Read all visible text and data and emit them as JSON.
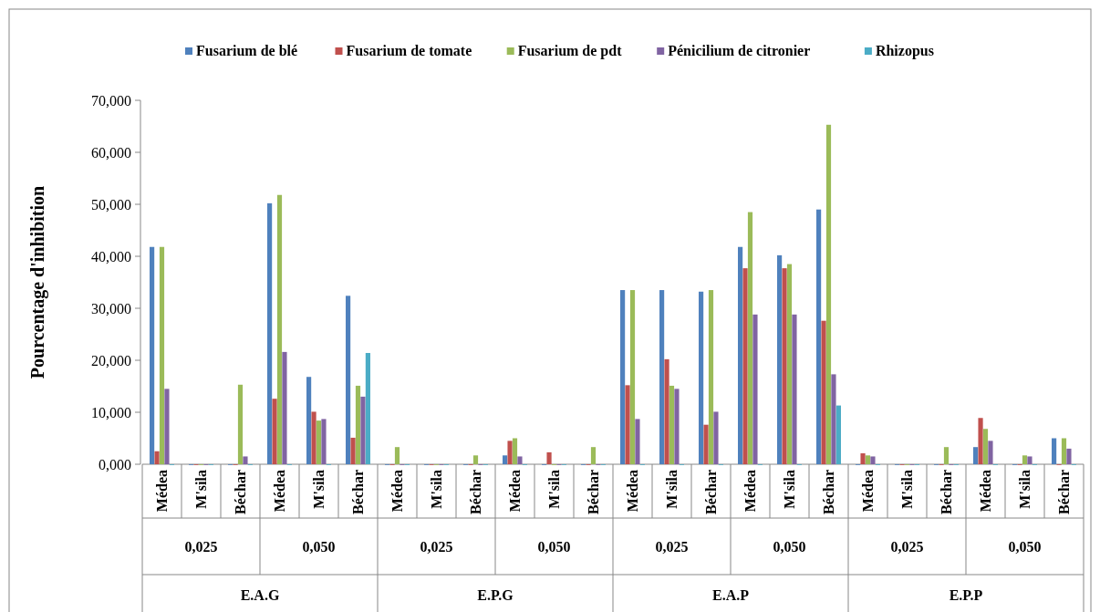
{
  "chart_data": {
    "type": "bar",
    "ylabel": "Pourcentage d'inhibition",
    "categories": [
      "Médea",
      "M'sila",
      "Béchar",
      "Médea",
      "M'sila",
      "Béchar",
      "Médea",
      "M'sila",
      "Béchar",
      "Médea",
      "M'sila",
      "Béchar",
      "Médea",
      "M'sila",
      "Béchar",
      "Médea",
      "M'sila",
      "Béchar",
      "Médea",
      "M'sila",
      "Béchar",
      "Médea",
      "M'sila",
      "Béchar"
    ],
    "series": [
      {
        "name": "Fusarium de blé",
        "color": "#4f81bd",
        "values": [
          41.8,
          0,
          0,
          50.2,
          16.8,
          32.4,
          0,
          0,
          0,
          1.7,
          0,
          0,
          33.5,
          33.5,
          33.2,
          41.8,
          40.2,
          49.0,
          0,
          0,
          0,
          3.3,
          0,
          5.0
        ]
      },
      {
        "name": "Fusarium de tomate",
        "color": "#c0504d",
        "values": [
          2.5,
          0,
          0,
          12.6,
          10.1,
          5.1,
          0,
          0,
          0,
          4.5,
          2.3,
          0,
          15.2,
          20.2,
          7.6,
          37.7,
          37.7,
          27.6,
          2.1,
          0,
          0,
          8.9,
          0,
          0
        ]
      },
      {
        "name": "Fusarium de pdt",
        "color": "#9bbb59",
        "values": [
          41.8,
          0,
          15.3,
          51.8,
          8.4,
          15.1,
          3.3,
          0,
          1.7,
          5.0,
          0,
          3.3,
          33.5,
          15.1,
          33.5,
          48.5,
          38.5,
          65.3,
          1.7,
          0,
          3.3,
          6.8,
          1.7,
          5.0
        ]
      },
      {
        "name": "Pénicilium de citronier",
        "color": "#8064a2",
        "values": [
          14.5,
          0,
          1.5,
          21.6,
          8.7,
          13.0,
          0,
          0,
          0,
          1.5,
          0,
          0,
          8.7,
          14.5,
          10.1,
          28.8,
          28.8,
          17.3,
          1.5,
          0,
          0,
          4.5,
          1.5,
          3.0
        ]
      },
      {
        "name": "Rhizopus",
        "color": "#4bacc6",
        "values": [
          0,
          0,
          0,
          0,
          0,
          21.4,
          0,
          0,
          0,
          0,
          0,
          0,
          0,
          0,
          0,
          0,
          0,
          11.3,
          0,
          0,
          0,
          0,
          0,
          0
        ]
      }
    ],
    "ylim": [
      0,
      70
    ],
    "yticks": [
      {
        "value": 0,
        "label": "0,000"
      },
      {
        "value": 10,
        "label": "10,000"
      },
      {
        "value": 20,
        "label": "20,000"
      },
      {
        "value": 30,
        "label": "30,000"
      },
      {
        "value": 40,
        "label": "40,000"
      },
      {
        "value": 50,
        "label": "50,000"
      },
      {
        "value": 60,
        "label": "60,000"
      },
      {
        "value": 70,
        "label": "70,000"
      }
    ],
    "legend": "top",
    "annotations": [
      "0,025",
      "0,050",
      "0,025",
      "0,050",
      "0,025",
      "0,050",
      "0,025",
      "0,050",
      "E.A.G",
      "E.P.G",
      "E.A.P",
      "E.P.P"
    ]
  }
}
